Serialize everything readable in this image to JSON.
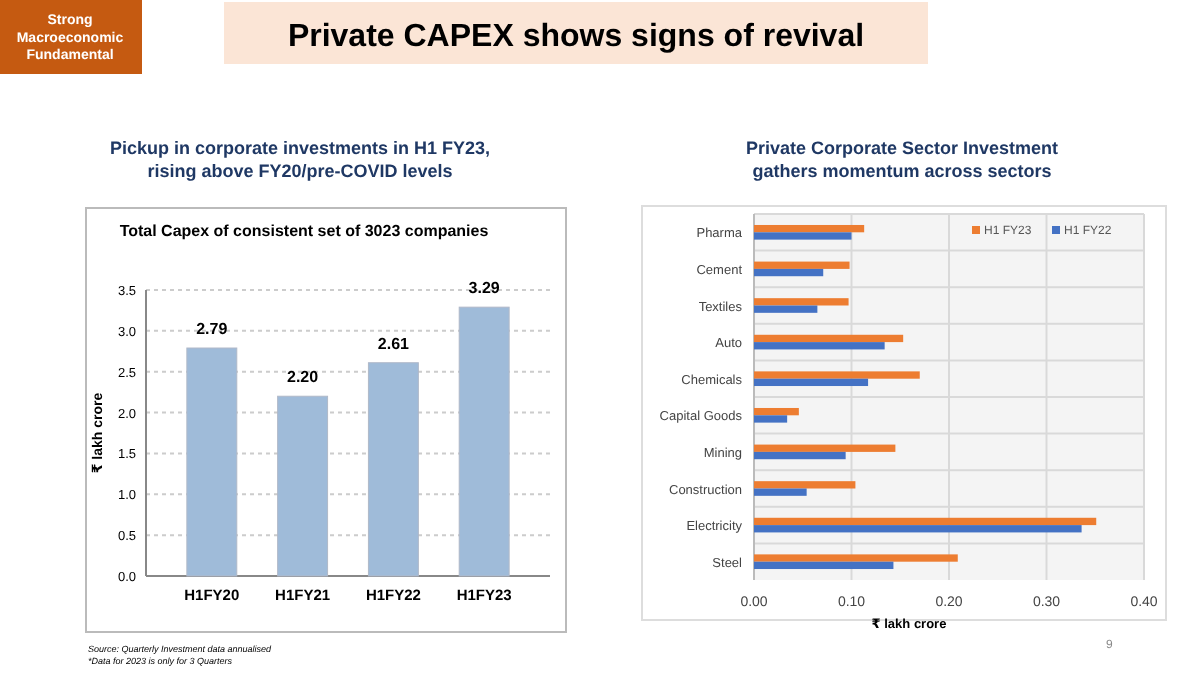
{
  "chart_data": [
    {
      "type": "bar",
      "title": "Pickup in corporate investments in H1 FY23, rising above FY20/pre-COVID levels",
      "subtitle": "Total Capex of consistent set of  3023 companies",
      "ylabel": "₹ lakh crore",
      "categories": [
        "H1FY20",
        "H1FY21",
        "H1FY22",
        "H1FY23"
      ],
      "values": [
        2.79,
        2.2,
        2.61,
        3.29
      ],
      "color": "#9fbbd9",
      "ylim": [
        0,
        3.5
      ],
      "yticks": [
        {
          "value": 0,
          "label": "0.0"
        },
        {
          "value": 0.5,
          "label": "0.5"
        },
        {
          "value": 1,
          "label": "1.0"
        },
        {
          "value": 1.5,
          "label": "1.5"
        },
        {
          "value": 2,
          "label": "2.0"
        },
        {
          "value": 2.5,
          "label": "2.5"
        },
        {
          "value": 3,
          "label": "3.0"
        },
        {
          "value": 3.5,
          "label": "3.5"
        }
      ],
      "grid": "y",
      "value_labels": [
        "2.79",
        "2.20",
        "2.61",
        "3.29"
      ],
      "annotations": [
        "Strong Macroeconomic Fundamental",
        "Private CAPEX shows signs of revival",
        "Source: Quarterly Investment data annualised",
        "*Data for 2023 is only for 3 Quarters"
      ]
    },
    {
      "type": "bar",
      "orientation": "horizontal",
      "title": "Private Corporate Sector Investment gathers momentum across sectors",
      "xlabel": "₹ lakh crore",
      "categories": [
        "Pharma",
        "Cement",
        "Textiles",
        "Auto",
        "Chemicals",
        "Capital Goods",
        "Mining",
        "Construction",
        "Electricity",
        "Steel"
      ],
      "series": [
        {
          "name": "H1 FY23",
          "color": "#ed7d31",
          "values": [
            0.113,
            0.098,
            0.097,
            0.153,
            0.17,
            0.046,
            0.145,
            0.104,
            0.351,
            0.209
          ]
        },
        {
          "name": "H1 FY22",
          "color": "#4472c4",
          "values": [
            0.1,
            0.071,
            0.065,
            0.134,
            0.117,
            0.034,
            0.094,
            0.054,
            0.336,
            0.143
          ]
        }
      ],
      "xlim": [
        0,
        0.4
      ],
      "xticks": [
        {
          "value": 0,
          "label": "0.00"
        },
        {
          "value": 0.1,
          "label": "0.10"
        },
        {
          "value": 0.2,
          "label": "0.20"
        },
        {
          "value": 0.3,
          "label": "0.30"
        },
        {
          "value": 0.4,
          "label": "0.40"
        }
      ],
      "grid": "x",
      "legend": "top right",
      "annotations": [
        "9"
      ]
    }
  ]
}
